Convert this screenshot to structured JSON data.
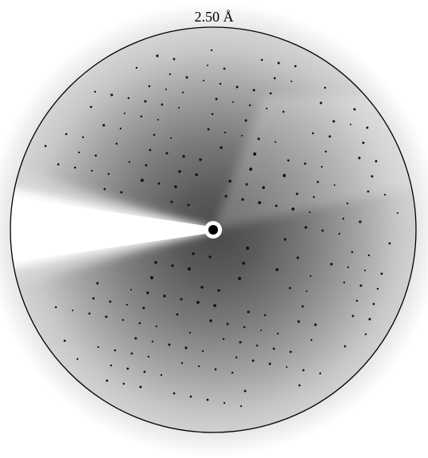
{
  "label": "2.50 Å"
}
